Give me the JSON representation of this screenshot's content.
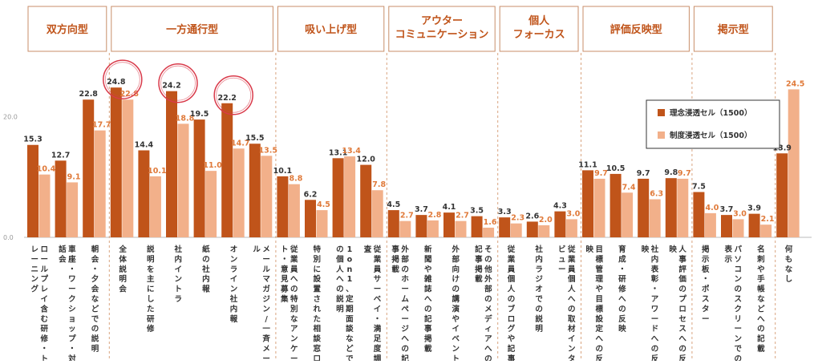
{
  "chart_data": {
    "type": "bar",
    "ylim": [
      0,
      30
    ],
    "yticks": [
      "0.0",
      "20.0"
    ],
    "ytick_values": [
      0,
      20
    ],
    "legend_position": "right",
    "colors": {
      "series1": "#c0541a",
      "series2": "#f2b08a",
      "category_text": "#c0541a",
      "highlight_circle": "#d93a4a"
    },
    "series": [
      {
        "name": "理念浸透セル（1500）"
      },
      {
        "name": "制度浸透セル（1500）"
      }
    ],
    "groups": [
      {
        "label": "双方向型",
        "items": [
          {
            "label": "ロールプレイ含む研修・トレーニング",
            "v1": 15.3,
            "v2": 10.4
          },
          {
            "label": "車座・ワークショップ・対話会",
            "v1": 12.7,
            "v2": 9.1
          },
          {
            "label": "朝会・夕会などでの説明",
            "v1": 22.8,
            "v2": 17.7
          }
        ]
      },
      {
        "label": "一方通行型",
        "items": [
          {
            "label": "全体説明会",
            "v1": 24.8,
            "v2": 22.8,
            "highlight": true
          },
          {
            "label": "説明を主にした研修",
            "v1": 14.4,
            "v2": 10.1
          },
          {
            "label": "社内イントラ",
            "v1": 24.2,
            "v2": 18.8,
            "highlight": true
          },
          {
            "label": "紙の社内報",
            "v1": 19.5,
            "v2": 11.0
          },
          {
            "label": "オンライン社内報",
            "v1": 22.2,
            "v2": 14.7,
            "highlight": true
          },
          {
            "label": "メールマガジン/一斉メール",
            "v1": 15.5,
            "v2": 13.5
          }
        ]
      },
      {
        "label": "吸い上げ型",
        "items": [
          {
            "label": "従業員への特別なアンケート・意見募集",
            "v1": 10.1,
            "v2": 8.8
          },
          {
            "label": "特別に設置された相談窓口",
            "v1": 6.2,
            "v2": 4.5
          },
          {
            "label": "1on1、定期面談などでの個人への説明",
            "v1": 13.1,
            "v2": 13.4
          },
          {
            "label": "従業員サーベイ・満足度調査",
            "v1": 12.0,
            "v2": 7.8
          }
        ]
      },
      {
        "label": "アウター\nコミュニケーション",
        "items": [
          {
            "label": "外部のホームページへの記事掲載",
            "v1": 4.5,
            "v2": 2.7
          },
          {
            "label": "新聞や雑誌への記事掲載",
            "v1": 3.7,
            "v2": 2.8
          },
          {
            "label": "外部向けの講演やイベント",
            "v1": 4.1,
            "v2": 2.7
          },
          {
            "label": "その他外部のメディアへの記事掲載",
            "v1": 3.5,
            "v2": 1.6
          }
        ]
      },
      {
        "label": "個人\nフォーカス",
        "items": [
          {
            "label": "従業員個人のブログや記事",
            "v1": 3.3,
            "v2": 2.3
          },
          {
            "label": "社内ラジオでの説明",
            "v1": 2.6,
            "v2": 2.0
          },
          {
            "label": "従業員個人への取材インタビュー",
            "v1": 4.3,
            "v2": 3.0
          }
        ]
      },
      {
        "label": "評価反映型",
        "items": [
          {
            "label": "目標管理や目標設定への反映",
            "v1": 11.1,
            "v2": 9.7
          },
          {
            "label": "育成・研修への反映",
            "v1": 10.5,
            "v2": 7.4
          },
          {
            "label": "社内表彰・アワードへの反映",
            "v1": 9.7,
            "v2": 6.3
          },
          {
            "label": "人事評価のプロセスへの反映",
            "v1": 9.8,
            "v2": 9.7
          }
        ]
      },
      {
        "label": "掲示型",
        "items": [
          {
            "label": "掲示板・ポスター",
            "v1": 7.5,
            "v2": 4.0
          },
          {
            "label": "パソコンのスクリーンでの表示",
            "v1": 3.7,
            "v2": 3.0
          },
          {
            "label": "名刺や手帳などへの記載",
            "v1": 3.9,
            "v2": 2.1
          }
        ]
      },
      {
        "label": "",
        "items": [
          {
            "label": "何もなし",
            "v1": 13.9,
            "v2": 24.5
          }
        ]
      }
    ]
  }
}
